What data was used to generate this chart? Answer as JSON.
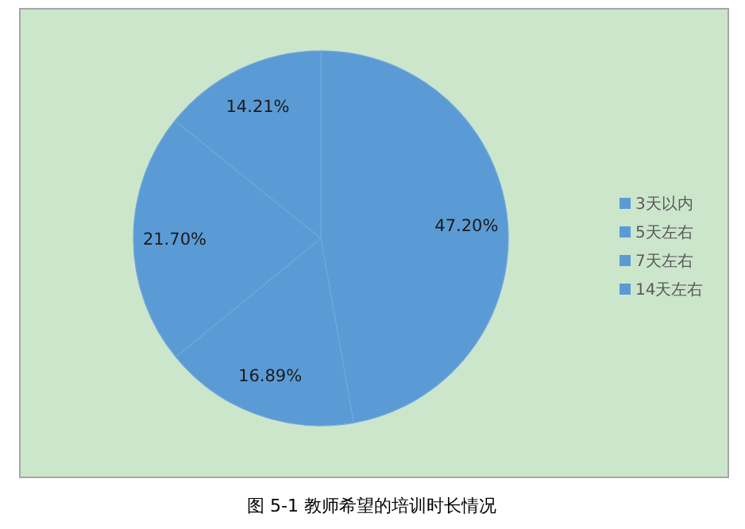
{
  "chart_data": {
    "type": "pie",
    "title": "图 5-1 教师希望的培训时长情况",
    "categories": [
      "3天以内",
      "5天左右",
      "7天左右",
      "14天左右"
    ],
    "values": [
      47.2,
      16.89,
      21.7,
      14.21
    ],
    "colors": [
      "#5b9bd5",
      "#5b9bd5",
      "#5b9bd5",
      "#5b9bd5"
    ],
    "value_labels": [
      "47.20%",
      "16.89%",
      "21.70%",
      "14.21%"
    ],
    "legend": "right"
  }
}
